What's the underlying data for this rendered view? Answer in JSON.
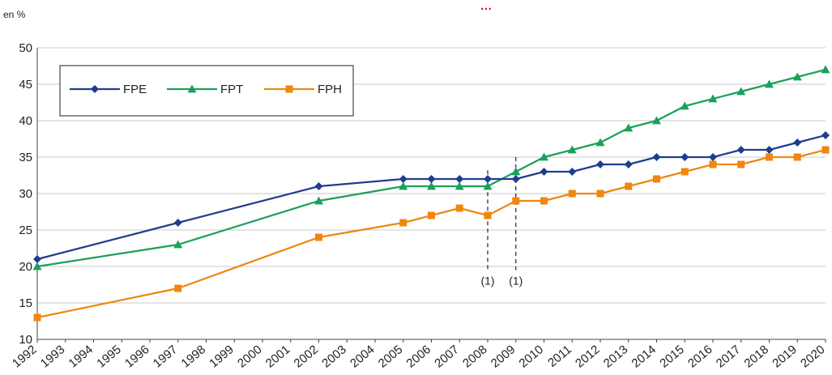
{
  "chart_data": {
    "type": "line",
    "title": "…",
    "unit_label": "en %",
    "xlabel": "",
    "ylabel": "",
    "ylim": [
      10,
      50
    ],
    "yticks": [
      10,
      15,
      20,
      25,
      30,
      35,
      40,
      45,
      50
    ],
    "x_range": [
      1992,
      2020
    ],
    "x_tick_labels": [
      "1992",
      "1993",
      "1994",
      "1995",
      "1996",
      "1997",
      "1998",
      "1999",
      "2000",
      "2001",
      "2002",
      "2003",
      "2004",
      "2005",
      "2006",
      "2007",
      "2008",
      "2009",
      "2010",
      "2011",
      "2012",
      "2013",
      "2014",
      "2015",
      "2016",
      "2017",
      "2018",
      "2019",
      "2020"
    ],
    "grid": "horizontal",
    "legend_position": "top-left",
    "series": [
      {
        "name": "FPE",
        "color": "#1f3d8f",
        "marker": "diamond",
        "x": [
          1992,
          1997,
          2002,
          2005,
          2006,
          2007,
          2008,
          2009,
          2010,
          2011,
          2012,
          2013,
          2014,
          2015,
          2016,
          2017,
          2018,
          2019,
          2020
        ],
        "y": [
          21,
          26,
          31,
          32,
          32,
          32,
          32,
          32,
          33,
          33,
          34,
          34,
          35,
          35,
          35,
          36,
          36,
          37,
          38
        ]
      },
      {
        "name": "FPT",
        "color": "#1aa05a",
        "marker": "triangle",
        "x": [
          1992,
          1997,
          2002,
          2005,
          2006,
          2007,
          2008,
          2009,
          2010,
          2011,
          2012,
          2013,
          2014,
          2015,
          2016,
          2017,
          2018,
          2019,
          2020
        ],
        "y": [
          20,
          23,
          29,
          31,
          31,
          31,
          31,
          33,
          35,
          36,
          37,
          39,
          40,
          42,
          43,
          44,
          45,
          46,
          47
        ]
      },
      {
        "name": "FPH",
        "color": "#f0860f",
        "marker": "square",
        "x": [
          1992,
          1997,
          2002,
          2005,
          2006,
          2007,
          2008,
          2009,
          2010,
          2011,
          2012,
          2013,
          2014,
          2015,
          2016,
          2017,
          2018,
          2019,
          2020
        ],
        "y": [
          13,
          17,
          24,
          26,
          27,
          28,
          27,
          29,
          29,
          30,
          30,
          31,
          32,
          33,
          34,
          34,
          35,
          35,
          36
        ]
      }
    ],
    "annotations": [
      {
        "x": 2008,
        "text": "(1)"
      },
      {
        "x": 2009,
        "text": "(1)"
      }
    ]
  }
}
